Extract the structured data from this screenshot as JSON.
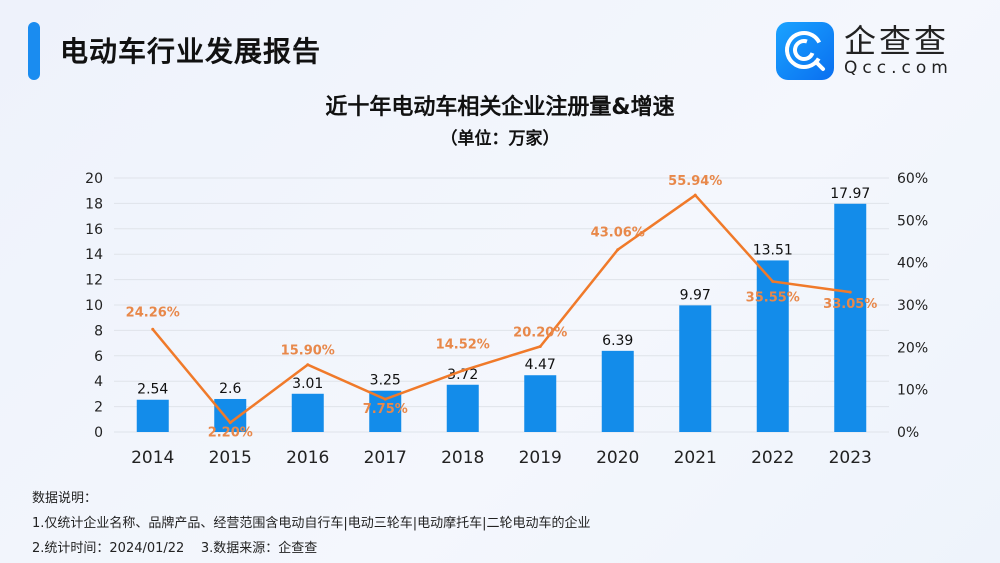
{
  "header": {
    "title": "电动车行业发展报告"
  },
  "logo": {
    "cn": "企查查",
    "en": "Qcc.com",
    "icon": "qcc-logo-icon"
  },
  "chart_data": {
    "type": "bar+line",
    "title": "近十年电动车相关企业注册量&增速",
    "subtitle": "（单位：万家）",
    "categories": [
      "2014",
      "2015",
      "2016",
      "2017",
      "2018",
      "2019",
      "2020",
      "2021",
      "2022",
      "2023"
    ],
    "series": [
      {
        "type": "bar",
        "axis": "left",
        "values": [
          2.54,
          2.6,
          3.01,
          3.25,
          3.72,
          4.47,
          6.39,
          9.97,
          13.51,
          17.97
        ],
        "labels": [
          "2.54",
          "2.6",
          "3.01",
          "3.25",
          "3.72",
          "4.47",
          "6.39",
          "9.97",
          "13.51",
          "17.97"
        ],
        "color": "#138cea"
      },
      {
        "type": "line",
        "axis": "right",
        "values": [
          24.26,
          2.2,
          15.9,
          7.75,
          14.52,
          20.2,
          43.06,
          55.94,
          35.55,
          33.05
        ],
        "labels": [
          "24.26%",
          "2.20%",
          "15.90%",
          "7.75%",
          "14.52%",
          "20.20%",
          "43.06%",
          "55.94%",
          "35.55%",
          "33.05%"
        ],
        "color": "#f07a2a"
      }
    ],
    "left_axis": {
      "ylim": [
        0,
        20
      ],
      "ticks": [
        "0",
        "2",
        "4",
        "6",
        "8",
        "10",
        "12",
        "14",
        "16",
        "18",
        "20"
      ]
    },
    "right_axis": {
      "ylim": [
        0,
        60
      ],
      "ticks": [
        "0%",
        "10%",
        "20%",
        "30%",
        "40%",
        "50%",
        "60%"
      ]
    },
    "grid": true
  },
  "notes": {
    "heading": "数据说明：",
    "line1": "1.仅统计企业名称、品牌产品、经营范围含电动自行车|电动三轮车|电动摩托车|二轮电动车的企业",
    "line2": "2.统计时间：2024/01/22    3.数据来源：企查查"
  }
}
